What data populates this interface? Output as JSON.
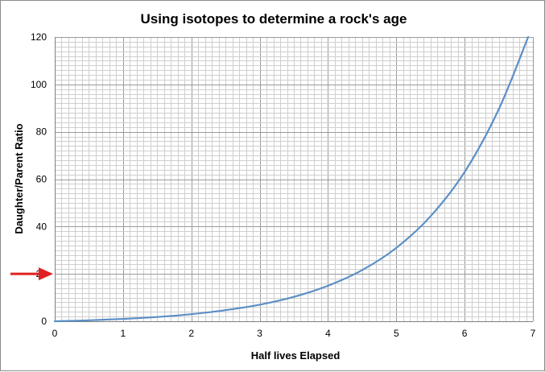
{
  "chart_data": {
    "type": "line",
    "title": "Using isotopes to determine a rock's age",
    "xlabel": "Half lives Elapsed",
    "ylabel": "Daughter/Parent Ratio",
    "xlim": [
      0,
      7
    ],
    "ylim": [
      0,
      120
    ],
    "x_ticks": [
      0,
      1,
      2,
      3,
      4,
      5,
      6,
      7
    ],
    "x_tick_labels": [
      "0",
      "1",
      "2",
      "3",
      "4",
      "5",
      "6",
      "7"
    ],
    "y_ticks": [
      0,
      20,
      40,
      60,
      80,
      100,
      120
    ],
    "y_tick_labels": [
      "0",
      "20",
      "40",
      "60",
      "80",
      "100",
      "120"
    ],
    "grid": true,
    "legend": "none",
    "series": [
      {
        "color": "#5b8fc6",
        "points": [
          [
            0,
            0
          ],
          [
            0.5,
            0.4
          ],
          [
            1,
            1
          ],
          [
            1.5,
            1.8
          ],
          [
            2,
            3
          ],
          [
            2.5,
            4.7
          ],
          [
            3,
            7
          ],
          [
            3.5,
            10.3
          ],
          [
            4,
            15
          ],
          [
            4.5,
            21.6
          ],
          [
            5,
            31
          ],
          [
            5.5,
            44.3
          ],
          [
            6,
            63
          ],
          [
            6.5,
            89.5
          ],
          [
            6.93,
            120
          ]
        ]
      }
    ],
    "annotations": [
      {
        "type": "arrow",
        "points_to_y": 20,
        "color": "#e02020"
      }
    ]
  }
}
